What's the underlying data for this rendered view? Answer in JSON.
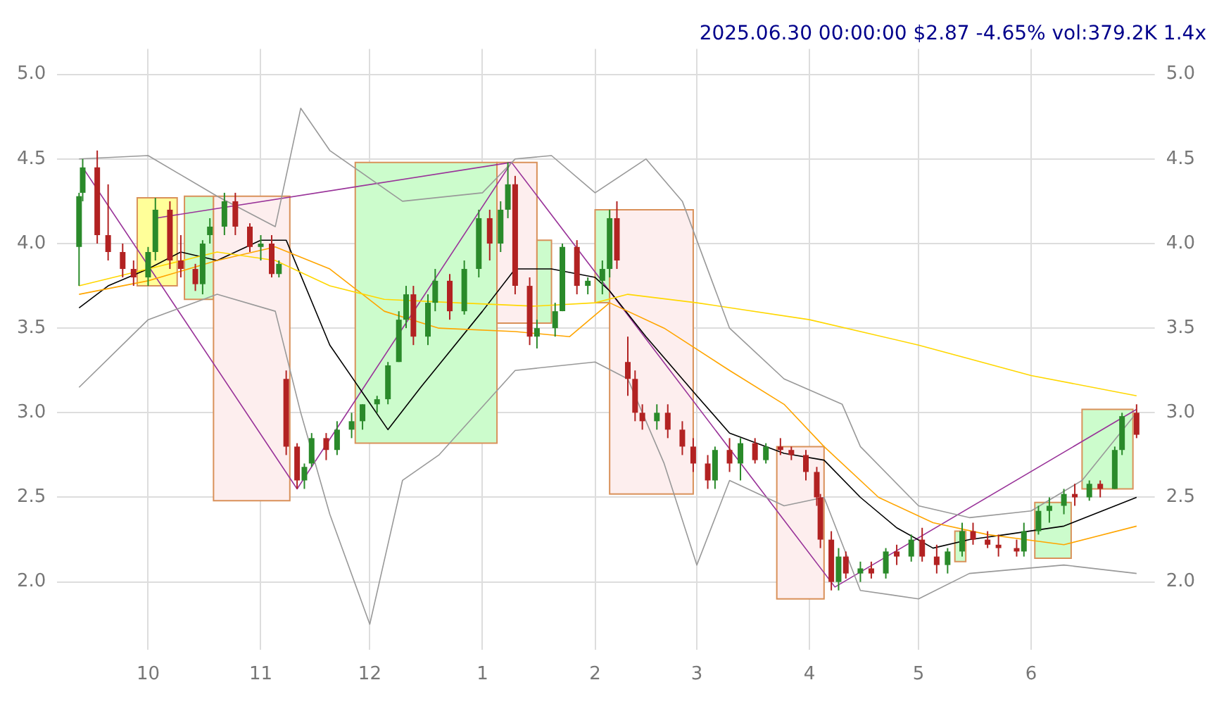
{
  "chart_data": {
    "type": "candlestick",
    "title": "2025.06.30 00:00:00 $2.87 -4.65% vol:379.2K 1.4x",
    "xlim": [
      "2024-09-06",
      "2025-07-05"
    ],
    "xticks": [
      {
        "value": "2024-10-01",
        "label": "10"
      },
      {
        "value": "2024-11-01",
        "label": "11"
      },
      {
        "value": "2024-12-01",
        "label": "12"
      },
      {
        "value": "2025-01-01",
        "label": "1"
      },
      {
        "value": "2025-02-01",
        "label": "2"
      },
      {
        "value": "2025-03-01",
        "label": "3"
      },
      {
        "value": "2025-04-01",
        "label": "4"
      },
      {
        "value": "2025-05-01",
        "label": "5"
      },
      {
        "value": "2025-06-01",
        "label": "6"
      }
    ],
    "ylim": [
      1.6,
      5.15
    ],
    "yticks": [
      {
        "value": 2,
        "label": "2.0"
      },
      {
        "value": 2.5,
        "label": "2.5"
      },
      {
        "value": 3,
        "label": "3.0"
      },
      {
        "value": 3.5,
        "label": "3.5"
      },
      {
        "value": 4,
        "label": "4.0"
      },
      {
        "value": 4.5,
        "label": "4.5"
      },
      {
        "value": 5,
        "label": "5.0"
      }
    ],
    "y2lim": [
      1.6,
      5.15
    ],
    "y2ticks": [
      {
        "value": 2,
        "label": "2.0"
      },
      {
        "value": 2.5,
        "label": "2.5"
      },
      {
        "value": 3,
        "label": "3.0"
      },
      {
        "value": 3.5,
        "label": "3.5"
      },
      {
        "value": 4,
        "label": "4.0"
      },
      {
        "value": 4.5,
        "label": "4.5"
      },
      {
        "value": 5,
        "label": "5.0"
      }
    ],
    "grid": true,
    "legend": false,
    "series": [
      {
        "type": "area",
        "color": "#ffff99",
        "x": [
          "2024-09-28",
          "2024-10-09"
        ],
        "lower": [
          3.75,
          3.75
        ],
        "upper": [
          4.27,
          4.27
        ],
        "values": [
          null,
          null
        ]
      },
      {
        "type": "area",
        "color": "#ccfccc",
        "x": [
          "2024-10-11",
          "2024-10-19"
        ],
        "lower": [
          3.67,
          3.67
        ],
        "upper": [
          4.28,
          4.28
        ],
        "values": [
          null,
          null
        ]
      },
      {
        "type": "area",
        "color": "#fdeeee",
        "x": [
          "2024-10-19",
          "2024-11-09"
        ],
        "lower": [
          2.48,
          2.48
        ],
        "upper": [
          4.28,
          4.28
        ],
        "values": [
          null,
          null
        ]
      },
      {
        "type": "area",
        "color": "#ccfccc",
        "x": [
          "2024-11-27",
          "2025-01-05"
        ],
        "lower": [
          2.82,
          2.82
        ],
        "upper": [
          4.48,
          4.48
        ],
        "values": [
          null,
          null
        ]
      },
      {
        "type": "area",
        "color": "#fdeeee",
        "x": [
          "2025-01-05",
          "2025-01-16"
        ],
        "lower": [
          3.53,
          3.53
        ],
        "upper": [
          4.48,
          4.48
        ],
        "values": [
          null,
          null
        ]
      },
      {
        "type": "area",
        "color": "#ccfccc",
        "x": [
          "2025-01-16",
          "2025-01-20"
        ],
        "lower": [
          3.53,
          3.53
        ],
        "upper": [
          4.02,
          4.02
        ],
        "values": [
          null,
          null
        ]
      },
      {
        "type": "area",
        "color": "#ccfccc",
        "x": [
          "2025-02-01",
          "2025-02-05"
        ],
        "lower": [
          3.65,
          3.65
        ],
        "upper": [
          4.2,
          4.2
        ],
        "values": [
          null,
          null
        ]
      },
      {
        "type": "area",
        "color": "#fdeeee",
        "x": [
          "2025-02-05",
          "2025-02-28"
        ],
        "lower": [
          2.52,
          2.52
        ],
        "upper": [
          4.2,
          4.2
        ],
        "values": [
          null,
          null
        ]
      },
      {
        "type": "area",
        "color": "#fdeeee",
        "x": [
          "2025-03-23",
          "2025-04-05"
        ],
        "lower": [
          1.9,
          1.9
        ],
        "upper": [
          2.8,
          2.8
        ],
        "values": [
          null,
          null
        ]
      },
      {
        "type": "area",
        "color": "#ccfccc",
        "x": [
          "2025-05-11",
          "2025-05-14"
        ],
        "lower": [
          2.12,
          2.12
        ],
        "upper": [
          2.3,
          2.3
        ],
        "values": [
          null,
          null
        ]
      },
      {
        "type": "area",
        "color": "#ccfccc",
        "x": [
          "2025-06-02",
          "2025-06-12"
        ],
        "lower": [
          2.14,
          2.14
        ],
        "upper": [
          2.47,
          2.47
        ],
        "values": [
          null,
          null
        ]
      },
      {
        "type": "area",
        "color": "#ccfccc",
        "x": [
          "2025-06-15",
          "2025-06-29"
        ],
        "lower": [
          2.55,
          2.55
        ],
        "upper": [
          3.02,
          3.02
        ],
        "values": [
          null,
          null
        ]
      },
      {
        "type": "line",
        "color": "#999999",
        "x": [
          "2024-09-12",
          "2024-10-01",
          "2024-10-20",
          "2024-11-05",
          "2024-11-12",
          "2024-11-20",
          "2024-12-10",
          "2025-01-01",
          "2025-01-10",
          "2025-01-20",
          "2025-02-01",
          "2025-02-15",
          "2025-02-25",
          "2025-03-10",
          "2025-03-25",
          "2025-04-10",
          "2025-04-15",
          "2025-05-01",
          "2025-05-15",
          "2025-06-01",
          "2025-06-15",
          "2025-06-30"
        ],
        "values": [
          4.5,
          4.52,
          4.28,
          4.1,
          4.8,
          4.55,
          4.25,
          4.3,
          4.5,
          4.52,
          4.3,
          4.5,
          4.25,
          3.5,
          3.2,
          3.05,
          2.8,
          2.45,
          2.38,
          2.42,
          2.6,
          3.0
        ]
      },
      {
        "type": "line",
        "color": "#999999",
        "x": [
          "2024-09-12",
          "2024-10-01",
          "2024-10-20",
          "2024-11-05",
          "2024-11-12",
          "2024-11-20",
          "2024-12-01",
          "2024-12-10",
          "2024-12-20",
          "2025-01-10",
          "2025-02-01",
          "2025-02-10",
          "2025-02-20",
          "2025-03-01",
          "2025-03-10",
          "2025-03-25",
          "2025-04-05",
          "2025-04-15",
          "2025-05-01",
          "2025-05-15",
          "2025-06-10",
          "2025-06-30"
        ],
        "values": [
          3.15,
          3.55,
          3.7,
          3.6,
          3.0,
          2.4,
          1.75,
          2.6,
          2.75,
          3.25,
          3.3,
          3.2,
          2.7,
          2.1,
          2.6,
          2.45,
          2.5,
          1.95,
          1.9,
          2.05,
          2.1,
          2.05
        ]
      },
      {
        "type": "line",
        "color": "#ffd700",
        "x": [
          "2024-09-12",
          "2024-10-01",
          "2024-10-20",
          "2024-11-05",
          "2024-11-20",
          "2024-12-05",
          "2024-12-25",
          "2025-01-15",
          "2025-02-01",
          "2025-02-10",
          "2025-03-01",
          "2025-04-01",
          "2025-05-01",
          "2025-06-01",
          "2025-06-30"
        ],
        "values": [
          3.75,
          3.85,
          3.95,
          3.9,
          3.75,
          3.67,
          3.65,
          3.63,
          3.65,
          3.7,
          3.65,
          3.55,
          3.4,
          3.22,
          3.1
        ]
      },
      {
        "type": "line",
        "color": "#ffa500",
        "x": [
          "2024-09-12",
          "2024-10-01",
          "2024-10-20",
          "2024-11-05",
          "2024-11-20",
          "2024-12-05",
          "2024-12-20",
          "2025-01-10",
          "2025-01-25",
          "2025-02-05",
          "2025-02-20",
          "2025-03-10",
          "2025-03-25",
          "2025-04-05",
          "2025-04-20",
          "2025-05-05",
          "2025-05-20",
          "2025-06-10",
          "2025-06-30"
        ],
        "values": [
          3.7,
          3.78,
          3.9,
          3.98,
          3.85,
          3.6,
          3.5,
          3.48,
          3.45,
          3.65,
          3.5,
          3.25,
          3.05,
          2.8,
          2.5,
          2.35,
          2.28,
          2.22,
          2.33
        ]
      },
      {
        "type": "line",
        "color": "#000000",
        "x": [
          "2024-09-12",
          "2024-09-20",
          "2024-10-01",
          "2024-10-10",
          "2024-10-20",
          "2024-11-01",
          "2024-11-08",
          "2024-11-20",
          "2024-12-06",
          "2024-12-15",
          "2025-01-01",
          "2025-01-10",
          "2025-01-20",
          "2025-02-01",
          "2025-02-05",
          "2025-02-15",
          "2025-03-01",
          "2025-03-10",
          "2025-03-25",
          "2025-04-05",
          "2025-04-15",
          "2025-04-25",
          "2025-05-05",
          "2025-05-15",
          "2025-05-25",
          "2025-06-10",
          "2025-06-30"
        ],
        "values": [
          3.62,
          3.75,
          3.85,
          3.95,
          3.9,
          4.02,
          4.02,
          3.4,
          2.9,
          3.15,
          3.6,
          3.85,
          3.85,
          3.8,
          3.72,
          3.45,
          3.1,
          2.88,
          2.76,
          2.72,
          2.5,
          2.32,
          2.2,
          2.25,
          2.28,
          2.33,
          2.5
        ]
      },
      {
        "type": "line",
        "color": "#993399",
        "x": [
          "2024-09-13",
          "2024-11-11",
          "2025-01-09",
          "2025-04-08",
          "2025-06-30"
        ],
        "values": [
          4.45,
          2.55,
          4.48,
          1.97,
          3.02
        ]
      },
      {
        "type": "line",
        "color": "#993399",
        "x": [
          "2024-10-03",
          "2025-01-09"
        ],
        "values": [
          4.15,
          4.48
        ]
      },
      {
        "x": [
          "2024-09-12",
          "2024-09-13",
          "2024-09-17",
          "2024-09-20",
          "2024-09-24",
          "2024-09-27",
          "2024-10-01",
          "2024-10-03",
          "2024-10-07",
          "2024-10-10",
          "2024-10-14",
          "2024-10-16",
          "2024-10-18",
          "2024-10-22",
          "2024-10-25",
          "2024-10-29",
          "2024-11-01",
          "2024-11-04",
          "2024-11-06",
          "2024-11-08",
          "2024-11-11",
          "2024-11-13",
          "2024-11-15",
          "2024-11-19",
          "2024-11-22",
          "2024-11-26",
          "2024-11-29",
          "2024-12-03",
          "2024-12-06",
          "2024-12-09",
          "2024-12-11",
          "2024-12-13",
          "2024-12-17",
          "2024-12-19",
          "2024-12-23",
          "2024-12-27",
          "2024-12-31",
          "2025-01-03",
          "2025-01-06",
          "2025-01-08",
          "2025-01-10",
          "2025-01-14",
          "2025-01-16",
          "2025-01-21",
          "2025-01-23",
          "2025-01-27",
          "2025-01-30",
          "2025-02-03",
          "2025-02-05",
          "2025-02-07",
          "2025-02-10",
          "2025-02-12",
          "2025-02-14",
          "2025-02-18",
          "2025-02-21",
          "2025-02-25",
          "2025-02-28",
          "2025-03-04",
          "2025-03-06",
          "2025-03-10",
          "2025-03-13",
          "2025-03-17",
          "2025-03-20",
          "2025-03-24",
          "2025-03-27",
          "2025-03-31",
          "2025-04-03",
          "2025-04-04",
          "2025-04-07",
          "2025-04-09",
          "2025-04-11",
          "2025-04-15",
          "2025-04-18",
          "2025-04-22",
          "2025-04-25",
          "2025-04-29",
          "2025-05-02",
          "2025-05-06",
          "2025-05-09",
          "2025-05-13",
          "2025-05-16",
          "2025-05-20",
          "2025-05-23",
          "2025-05-28",
          "2025-05-30",
          "2025-06-03",
          "2025-06-06",
          "2025-06-10",
          "2025-06-13",
          "2025-06-17",
          "2025-06-20",
          "2025-06-24",
          "2025-06-26",
          "2025-06-30"
        ],
        "ohlc": [
          [
            3.98,
            4.3,
            3.75,
            4.28
          ],
          [
            4.3,
            4.5,
            4.25,
            4.45
          ],
          [
            4.45,
            4.55,
            4.0,
            4.05
          ],
          [
            4.05,
            4.35,
            3.9,
            3.95
          ],
          [
            3.95,
            4.0,
            3.8,
            3.85
          ],
          [
            3.85,
            3.9,
            3.75,
            3.8
          ],
          [
            3.8,
            3.98,
            3.75,
            3.95
          ],
          [
            3.95,
            4.27,
            3.9,
            4.2
          ],
          [
            4.2,
            4.25,
            3.85,
            3.9
          ],
          [
            3.9,
            4.05,
            3.8,
            3.85
          ],
          [
            3.85,
            3.88,
            3.72,
            3.76
          ],
          [
            3.76,
            4.02,
            3.7,
            4.0
          ],
          [
            4.05,
            4.15,
            4.0,
            4.1
          ],
          [
            4.1,
            4.3,
            4.05,
            4.25
          ],
          [
            4.25,
            4.3,
            4.05,
            4.1
          ],
          [
            4.1,
            4.12,
            3.95,
            3.98
          ],
          [
            3.98,
            4.05,
            3.9,
            4.0
          ],
          [
            4.0,
            4.05,
            3.8,
            3.82
          ],
          [
            3.82,
            3.9,
            3.8,
            3.88
          ],
          [
            3.2,
            3.25,
            2.75,
            2.8
          ],
          [
            2.8,
            2.82,
            2.55,
            2.6
          ],
          [
            2.6,
            2.7,
            2.55,
            2.68
          ],
          [
            2.7,
            2.88,
            2.68,
            2.85
          ],
          [
            2.85,
            2.88,
            2.72,
            2.78
          ],
          [
            2.78,
            2.95,
            2.75,
            2.9
          ],
          [
            2.9,
            3.0,
            2.85,
            2.95
          ],
          [
            2.95,
            3.05,
            2.9,
            3.05
          ],
          [
            3.05,
            3.1,
            3.0,
            3.08
          ],
          [
            3.08,
            3.3,
            3.05,
            3.28
          ],
          [
            3.3,
            3.6,
            3.3,
            3.55
          ],
          [
            3.55,
            3.75,
            3.5,
            3.7
          ],
          [
            3.7,
            3.75,
            3.4,
            3.45
          ],
          [
            3.45,
            3.7,
            3.4,
            3.65
          ],
          [
            3.65,
            3.85,
            3.6,
            3.78
          ],
          [
            3.78,
            3.82,
            3.55,
            3.6
          ],
          [
            3.6,
            3.9,
            3.58,
            3.85
          ],
          [
            3.85,
            4.2,
            3.8,
            4.15
          ],
          [
            4.15,
            4.2,
            3.9,
            4.0
          ],
          [
            4.0,
            4.25,
            3.95,
            4.2
          ],
          [
            4.2,
            4.48,
            4.15,
            4.35
          ],
          [
            4.35,
            4.4,
            3.7,
            3.75
          ],
          [
            3.75,
            3.8,
            3.4,
            3.45
          ],
          [
            3.45,
            3.55,
            3.38,
            3.5
          ],
          [
            3.5,
            3.65,
            3.45,
            3.6
          ],
          [
            3.6,
            4.0,
            3.6,
            3.98
          ],
          [
            3.98,
            4.02,
            3.7,
            3.75
          ],
          [
            3.75,
            3.8,
            3.7,
            3.78
          ],
          [
            3.78,
            3.9,
            3.7,
            3.85
          ],
          [
            3.85,
            4.2,
            3.8,
            4.15
          ],
          [
            4.15,
            4.25,
            3.85,
            3.9
          ],
          [
            3.3,
            3.45,
            3.1,
            3.2
          ],
          [
            3.2,
            3.25,
            2.95,
            3.0
          ],
          [
            3.0,
            3.05,
            2.9,
            2.95
          ],
          [
            2.95,
            3.05,
            2.9,
            3.0
          ],
          [
            3.0,
            3.05,
            2.85,
            2.9
          ],
          [
            2.9,
            2.95,
            2.75,
            2.8
          ],
          [
            2.8,
            2.85,
            2.65,
            2.7
          ],
          [
            2.7,
            2.75,
            2.55,
            2.6
          ],
          [
            2.6,
            2.8,
            2.55,
            2.78
          ],
          [
            2.78,
            2.85,
            2.65,
            2.7
          ],
          [
            2.7,
            2.85,
            2.6,
            2.82
          ],
          [
            2.82,
            2.85,
            2.7,
            2.72
          ],
          [
            2.72,
            2.82,
            2.7,
            2.8
          ],
          [
            2.8,
            2.85,
            2.75,
            2.78
          ],
          [
            2.78,
            2.8,
            2.72,
            2.75
          ],
          [
            2.75,
            2.78,
            2.6,
            2.65
          ],
          [
            2.65,
            2.68,
            2.45,
            2.5
          ],
          [
            2.5,
            2.52,
            2.2,
            2.25
          ],
          [
            2.25,
            2.3,
            1.95,
            2.0
          ],
          [
            2.0,
            2.2,
            1.95,
            2.15
          ],
          [
            2.15,
            2.18,
            2.02,
            2.05
          ],
          [
            2.05,
            2.12,
            2.0,
            2.08
          ],
          [
            2.08,
            2.12,
            2.02,
            2.05
          ],
          [
            2.05,
            2.2,
            2.02,
            2.18
          ],
          [
            2.18,
            2.22,
            2.1,
            2.15
          ],
          [
            2.15,
            2.28,
            2.12,
            2.25
          ],
          [
            2.25,
            2.32,
            2.12,
            2.15
          ],
          [
            2.15,
            2.22,
            2.05,
            2.1
          ],
          [
            2.1,
            2.2,
            2.05,
            2.18
          ],
          [
            2.18,
            2.35,
            2.15,
            2.3
          ],
          [
            2.3,
            2.35,
            2.22,
            2.25
          ],
          [
            2.25,
            2.3,
            2.2,
            2.22
          ],
          [
            2.22,
            2.28,
            2.15,
            2.2
          ],
          [
            2.2,
            2.25,
            2.15,
            2.18
          ],
          [
            2.18,
            2.35,
            2.15,
            2.3
          ],
          [
            2.3,
            2.45,
            2.28,
            2.42
          ],
          [
            2.42,
            2.5,
            2.35,
            2.45
          ],
          [
            2.45,
            2.55,
            2.4,
            2.52
          ],
          [
            2.52,
            2.58,
            2.45,
            2.5
          ],
          [
            2.5,
            2.6,
            2.48,
            2.58
          ],
          [
            2.58,
            2.6,
            2.5,
            2.55
          ],
          [
            2.55,
            2.8,
            2.55,
            2.78
          ],
          [
            2.78,
            3.0,
            2.75,
            2.98
          ],
          [
            3.0,
            3.05,
            2.85,
            2.87
          ]
        ],
        "colors": [
          "#2a8a2a",
          "#2a8a2a",
          "#b22222",
          "#b22222",
          "#b22222",
          "#b22222",
          "#2a8a2a",
          "#2a8a2a",
          "#b22222",
          "#b22222",
          "#b22222",
          "#2a8a2a",
          "#2a8a2a",
          "#2a8a2a",
          "#b22222",
          "#b22222",
          "#2a8a2a",
          "#b22222",
          "#2a8a2a",
          "#b22222",
          "#b22222",
          "#2a8a2a",
          "#2a8a2a",
          "#b22222",
          "#2a8a2a",
          "#2a8a2a",
          "#2a8a2a",
          "#2a8a2a",
          "#2a8a2a",
          "#2a8a2a",
          "#2a8a2a",
          "#b22222",
          "#2a8a2a",
          "#2a8a2a",
          "#b22222",
          "#2a8a2a",
          "#2a8a2a",
          "#b22222",
          "#2a8a2a",
          "#2a8a2a",
          "#b22222",
          "#b22222",
          "#2a8a2a",
          "#2a8a2a",
          "#2a8a2a",
          "#b22222",
          "#2a8a2a",
          "#2a8a2a",
          "#2a8a2a",
          "#b22222",
          "#b22222",
          "#b22222",
          "#b22222",
          "#2a8a2a",
          "#b22222",
          "#b22222",
          "#b22222",
          "#b22222",
          "#2a8a2a",
          "#b22222",
          "#2a8a2a",
          "#b22222",
          "#2a8a2a",
          "#b22222",
          "#b22222",
          "#b22222",
          "#b22222",
          "#b22222",
          "#b22222",
          "#2a8a2a",
          "#b22222",
          "#2a8a2a",
          "#b22222",
          "#2a8a2a",
          "#b22222",
          "#2a8a2a",
          "#b22222",
          "#b22222",
          "#2a8a2a",
          "#2a8a2a",
          "#b22222",
          "#b22222",
          "#b22222",
          "#b22222",
          "#2a8a2a",
          "#2a8a2a",
          "#2a8a2a",
          "#2a8a2a",
          "#b22222",
          "#2a8a2a",
          "#b22222",
          "#2a8a2a",
          "#2a8a2a",
          "#b22222"
        ]
      }
    ]
  }
}
